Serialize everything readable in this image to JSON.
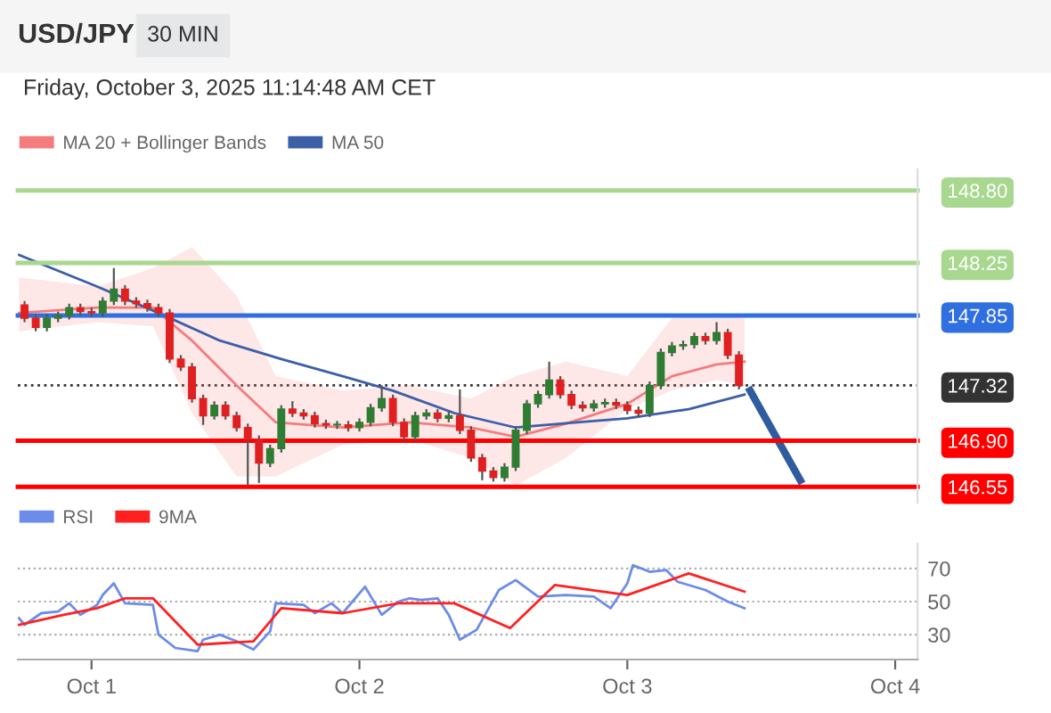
{
  "chart_data": [
    {
      "type": "candlestick",
      "title": "USD/JPY",
      "subtitle": "30 MIN",
      "annotations": [
        "Friday, October 3, 2025 11:14:48 AM CET"
      ],
      "x": [
        "2025-09-30T18:00",
        "2025-09-30T19:00",
        "2025-09-30T20:00",
        "2025-09-30T21:00",
        "2025-09-30T22:00",
        "2025-09-30T23:00",
        "2025-10-01T00:00",
        "2025-10-01T01:00",
        "2025-10-01T02:00",
        "2025-10-01T03:00",
        "2025-10-01T04:00",
        "2025-10-01T05:00",
        "2025-10-01T06:00",
        "2025-10-01T07:00",
        "2025-10-01T08:00",
        "2025-10-01T09:00",
        "2025-10-01T10:00",
        "2025-10-01T11:00",
        "2025-10-01T12:00",
        "2025-10-01T13:00",
        "2025-10-01T14:00",
        "2025-10-01T15:00",
        "2025-10-01T16:00",
        "2025-10-01T17:00",
        "2025-10-01T18:00",
        "2025-10-01T19:00",
        "2025-10-01T20:00",
        "2025-10-01T21:00",
        "2025-10-01T22:00",
        "2025-10-01T23:00",
        "2025-10-02T00:00",
        "2025-10-02T01:00",
        "2025-10-02T02:00",
        "2025-10-02T03:00",
        "2025-10-02T04:00",
        "2025-10-02T05:00",
        "2025-10-02T06:00",
        "2025-10-02T07:00",
        "2025-10-02T08:00",
        "2025-10-02T09:00",
        "2025-10-02T10:00",
        "2025-10-02T11:00",
        "2025-10-02T12:00",
        "2025-10-02T13:00",
        "2025-10-02T14:00",
        "2025-10-02T15:00",
        "2025-10-02T16:00",
        "2025-10-02T17:00",
        "2025-10-02T18:00",
        "2025-10-02T19:00",
        "2025-10-02T20:00",
        "2025-10-02T21:00",
        "2025-10-02T22:00",
        "2025-10-02T23:00",
        "2025-10-03T00:00",
        "2025-10-03T01:00",
        "2025-10-03T02:00",
        "2025-10-03T03:00",
        "2025-10-03T04:00",
        "2025-10-03T05:00",
        "2025-10-03T06:00",
        "2025-10-03T07:00",
        "2025-10-03T08:00",
        "2025-10-03T09:00",
        "2025-10-03T10:00"
      ],
      "ohlc": [
        [
          147.93,
          147.96,
          147.8,
          147.83
        ],
        [
          147.83,
          147.86,
          147.73,
          147.76
        ],
        [
          147.76,
          147.86,
          147.73,
          147.83
        ],
        [
          147.83,
          147.88,
          147.8,
          147.85
        ],
        [
          147.85,
          147.94,
          147.82,
          147.91
        ],
        [
          147.91,
          147.94,
          147.85,
          147.88
        ],
        [
          147.88,
          147.91,
          147.84,
          147.87
        ],
        [
          147.87,
          147.99,
          147.84,
          147.96
        ],
        [
          147.96,
          148.21,
          147.93,
          148.05
        ],
        [
          148.05,
          148.08,
          147.93,
          147.96
        ],
        [
          147.96,
          147.99,
          147.91,
          147.94
        ],
        [
          147.94,
          147.97,
          147.88,
          147.91
        ],
        [
          147.91,
          147.94,
          147.84,
          147.87
        ],
        [
          147.87,
          147.9,
          147.49,
          147.52
        ],
        [
          147.52,
          147.55,
          147.43,
          147.46
        ],
        [
          147.46,
          147.49,
          147.19,
          147.22
        ],
        [
          147.22,
          147.25,
          147.02,
          147.09
        ],
        [
          147.09,
          147.2,
          147.06,
          147.17
        ],
        [
          147.17,
          147.2,
          147.06,
          147.09
        ],
        [
          147.09,
          147.12,
          146.97,
          147.0
        ],
        [
          147.0,
          147.03,
          146.56,
          146.91
        ],
        [
          146.91,
          146.94,
          146.58,
          146.73
        ],
        [
          146.73,
          146.87,
          146.7,
          146.84
        ],
        [
          146.84,
          147.17,
          146.81,
          147.14
        ],
        [
          147.14,
          147.2,
          147.08,
          147.11
        ],
        [
          147.11,
          147.14,
          147.06,
          147.09
        ],
        [
          147.09,
          147.12,
          147.0,
          147.03
        ],
        [
          147.03,
          147.06,
          146.99,
          147.02
        ],
        [
          147.02,
          147.05,
          146.99,
          147.02
        ],
        [
          147.02,
          147.05,
          146.97,
          147.0
        ],
        [
          147.0,
          147.07,
          146.97,
          147.04
        ],
        [
          147.04,
          147.18,
          147.01,
          147.15
        ],
        [
          147.15,
          147.32,
          147.12,
          147.22
        ],
        [
          147.22,
          147.25,
          147.01,
          147.04
        ],
        [
          147.04,
          147.07,
          146.9,
          146.93
        ],
        [
          146.93,
          147.12,
          146.9,
          147.09
        ],
        [
          147.09,
          147.14,
          147.06,
          147.11
        ],
        [
          147.11,
          147.14,
          147.04,
          147.07
        ],
        [
          147.07,
          147.12,
          147.04,
          147.09
        ],
        [
          147.09,
          147.29,
          146.95,
          146.98
        ],
        [
          146.98,
          147.01,
          146.74,
          146.77
        ],
        [
          146.77,
          146.8,
          146.6,
          146.67
        ],
        [
          146.67,
          146.7,
          146.59,
          146.62
        ],
        [
          146.62,
          146.73,
          146.59,
          146.7
        ],
        [
          146.7,
          147.01,
          146.67,
          146.98
        ],
        [
          146.98,
          147.21,
          146.95,
          147.18
        ],
        [
          147.18,
          147.28,
          147.15,
          147.25
        ],
        [
          147.25,
          147.5,
          147.22,
          147.36
        ],
        [
          147.36,
          147.39,
          147.22,
          147.25
        ],
        [
          147.25,
          147.28,
          147.14,
          147.17
        ],
        [
          147.17,
          147.2,
          147.12,
          147.15
        ],
        [
          147.15,
          147.21,
          147.12,
          147.18
        ],
        [
          147.18,
          147.22,
          147.15,
          147.19
        ],
        [
          147.19,
          147.22,
          147.14,
          147.17
        ],
        [
          147.17,
          147.2,
          147.1,
          147.13
        ],
        [
          147.13,
          147.16,
          147.08,
          147.11
        ],
        [
          147.11,
          147.35,
          147.08,
          147.32
        ],
        [
          147.32,
          147.6,
          147.29,
          147.57
        ],
        [
          147.57,
          147.65,
          147.54,
          147.62
        ],
        [
          147.62,
          147.66,
          147.59,
          147.63
        ],
        [
          147.63,
          147.72,
          147.6,
          147.69
        ],
        [
          147.69,
          147.72,
          147.63,
          147.66
        ],
        [
          147.66,
          147.8,
          147.63,
          147.72
        ],
        [
          147.72,
          147.75,
          147.52,
          147.55
        ],
        [
          147.55,
          147.58,
          147.29,
          147.32
        ]
      ],
      "series": [
        {
          "name": "MA 20 + Bollinger Bands",
          "type": "line",
          "color": "#f47c7c",
          "x": [
            "2025-09-30T17:30",
            "2025-10-01T00:30",
            "2025-10-01T05:30",
            "2025-10-01T09:00",
            "2025-10-01T13:00",
            "2025-10-01T16:30",
            "2025-10-01T22:30",
            "2025-10-02T04:30",
            "2025-10-02T10:00",
            "2025-10-02T14:00",
            "2025-10-02T18:30",
            "2025-10-03T00:00",
            "2025-10-03T04:00",
            "2025-10-03T08:00",
            "2025-10-03T10:30"
          ],
          "values": [
            147.87,
            147.91,
            147.91,
            147.66,
            147.32,
            147.04,
            147.0,
            147.04,
            147.0,
            146.93,
            147.03,
            147.18,
            147.39,
            147.48,
            147.5
          ],
          "upper": [
            148.14,
            148.07,
            148.21,
            148.37,
            148.0,
            147.39,
            147.28,
            147.32,
            147.22,
            147.39,
            147.5,
            147.39,
            147.83,
            147.87,
            147.83
          ],
          "lower": [
            147.73,
            147.8,
            147.77,
            147.11,
            146.63,
            146.63,
            146.87,
            146.91,
            146.77,
            146.56,
            146.77,
            147.14,
            147.28,
            147.36,
            147.32
          ]
        },
        {
          "name": "MA 50",
          "type": "line",
          "color": "#3d5fa8",
          "x": [
            "2025-09-30T17:30",
            "2025-10-01T00:30",
            "2025-10-01T06:00",
            "2025-10-01T11:30",
            "2025-10-01T17:00",
            "2025-10-01T22:30",
            "2025-10-02T03:00",
            "2025-10-02T08:30",
            "2025-10-02T14:00",
            "2025-10-02T19:30",
            "2025-10-03T00:00",
            "2025-10-03T05:30",
            "2025-10-03T10:30"
          ],
          "values": [
            148.31,
            148.07,
            147.87,
            147.66,
            147.52,
            147.39,
            147.28,
            147.11,
            147.0,
            147.04,
            147.07,
            147.14,
            147.25
          ]
        },
        {
          "type": "line",
          "color": "#2f5c9e",
          "x": [
            "2025-10-03T11:00",
            "2025-10-03T15:30"
          ],
          "values": [
            147.28,
            146.6
          ]
        }
      ],
      "ref_lines": [
        {
          "axis": "y",
          "value": 148.8,
          "color": "#a8d88f"
        },
        {
          "axis": "y",
          "value": 148.25,
          "color": "#a8d88f"
        },
        {
          "axis": "y",
          "value": 147.85,
          "color": "#2f6fe0"
        },
        {
          "axis": "y",
          "value": 147.32,
          "color": "#333333",
          "line_style": "dotted"
        },
        {
          "axis": "y",
          "value": 146.9,
          "color": "#ff0000"
        },
        {
          "axis": "y",
          "value": 146.55,
          "color": "#ff0000"
        }
      ],
      "xlim": [
        "2025-09-30T17:24",
        "2025-10-04T02:00"
      ],
      "ylim": [
        146.43,
        148.96
      ],
      "yticks": [
        {
          "value": 148.8,
          "label": "148.80"
        },
        {
          "value": 148.25,
          "label": "148.25"
        },
        {
          "value": 147.85,
          "label": "147.85"
        },
        {
          "value": 147.32,
          "label": "147.32"
        },
        {
          "value": 146.9,
          "label": "146.90"
        },
        {
          "value": 146.55,
          "label": "146.55"
        }
      ],
      "tick_labels": "y",
      "legend": "top left",
      "grid": false
    },
    {
      "type": "line",
      "x": [
        "2025-09-30T17:30",
        "2025-09-30T18:00",
        "2025-09-30T19:30",
        "2025-09-30T21:00",
        "2025-09-30T22:00",
        "2025-09-30T23:00",
        "2025-10-01T00:30",
        "2025-10-01T01:00",
        "2025-10-01T02:00",
        "2025-10-01T03:00",
        "2025-10-01T05:30",
        "2025-10-01T06:00",
        "2025-10-01T07:30",
        "2025-10-01T09:30",
        "2025-10-01T10:00",
        "2025-10-01T11:30",
        "2025-10-01T13:00",
        "2025-10-01T14:30",
        "2025-10-01T16:00",
        "2025-10-01T16:30",
        "2025-10-01T19:00",
        "2025-10-01T20:00",
        "2025-10-01T21:30",
        "2025-10-01T22:30",
        "2025-10-02T00:30",
        "2025-10-02T02:00",
        "2025-10-02T03:30",
        "2025-10-02T04:30",
        "2025-10-02T05:30",
        "2025-10-02T07:00",
        "2025-10-02T08:00",
        "2025-10-02T09:00",
        "2025-10-02T10:30",
        "2025-10-02T12:30",
        "2025-10-02T14:00",
        "2025-10-02T16:00",
        "2025-10-02T18:30",
        "2025-10-02T21:00",
        "2025-10-02T22:30",
        "2025-10-03T00:00",
        "2025-10-03T00:30",
        "2025-10-03T02:00",
        "2025-10-03T03:30",
        "2025-10-03T04:30",
        "2025-10-03T07:00",
        "2025-10-03T09:00",
        "2025-10-03T10:30"
      ],
      "series": [
        {
          "name": "RSI",
          "color": "#6b8ce8",
          "values": [
            40,
            36,
            43,
            44,
            49,
            42,
            48,
            54,
            61,
            49,
            48,
            30,
            22,
            20,
            27,
            30,
            26,
            21,
            32,
            49,
            48,
            43,
            49,
            43,
            59,
            42,
            50,
            52,
            51,
            52,
            42,
            27,
            33,
            57,
            63,
            53,
            54,
            53,
            46,
            61,
            72,
            68,
            69,
            62,
            57,
            50,
            46
          ]
        },
        {
          "name": "9MA",
          "color": "#ff2020",
          "x": [
            "2025-09-30T17:30",
            "2025-09-30T21:30",
            "2025-10-01T00:30",
            "2025-10-01T03:00",
            "2025-10-01T05:30",
            "2025-10-01T09:30",
            "2025-10-01T14:30",
            "2025-10-01T17:00",
            "2025-10-01T22:30",
            "2025-10-02T03:30",
            "2025-10-02T08:30",
            "2025-10-02T13:30",
            "2025-10-02T17:30",
            "2025-10-03T00:00",
            "2025-10-03T05:30",
            "2025-10-03T10:30"
          ],
          "values": [
            36,
            42,
            46,
            52,
            52,
            24,
            26,
            46,
            43,
            49,
            49,
            34,
            60,
            54,
            67,
            56
          ]
        }
      ],
      "xlim": [
        "2025-09-30T17:24",
        "2025-10-04T02:00"
      ],
      "xticks": [
        {
          "value": "2025-10-01",
          "label": "Oct 1"
        },
        {
          "value": "2025-10-02",
          "label": "Oct 2"
        },
        {
          "value": "2025-10-03",
          "label": "Oct 3"
        },
        {
          "value": "2025-10-04",
          "label": "Oct 4"
        }
      ],
      "ylim": [
        15,
        85
      ],
      "yticks": [
        30,
        50,
        70
      ],
      "grid": "y",
      "legend": "top left"
    }
  ]
}
